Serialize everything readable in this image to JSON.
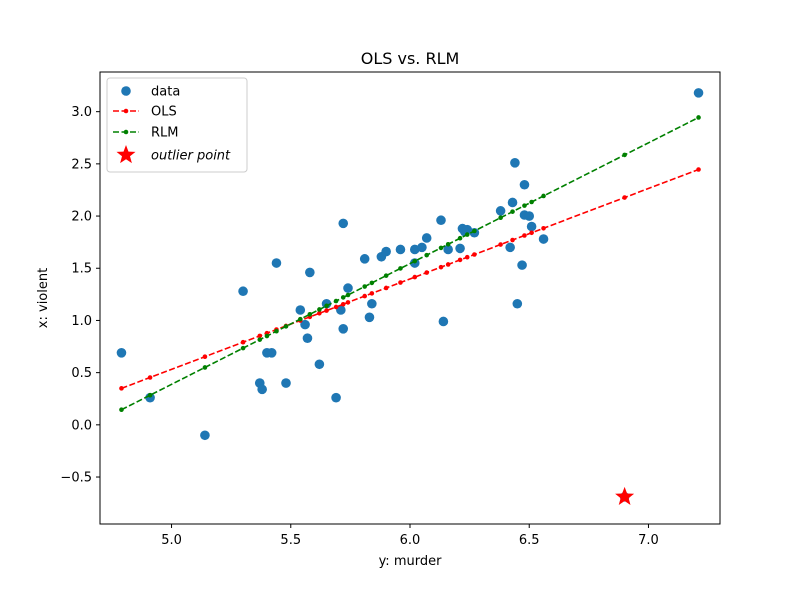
{
  "chart_data": {
    "type": "scatter",
    "title": "OLS vs. RLM",
    "xlabel": "y: murder",
    "ylabel": "x: violent",
    "xlim": [
      4.7,
      7.3
    ],
    "ylim": [
      -0.95,
      3.38
    ],
    "xticks": [
      5.0,
      5.5,
      6.0,
      6.5,
      7.0
    ],
    "xtick_labels": [
      "5.0",
      "5.5",
      "6.0",
      "6.5",
      "7.0"
    ],
    "yticks": [
      -0.5,
      0.0,
      0.5,
      1.0,
      1.5,
      2.0,
      2.5,
      3.0
    ],
    "ytick_labels": [
      "−0.5",
      "0.0",
      "0.5",
      "1.0",
      "1.5",
      "2.0",
      "2.5",
      "3.0"
    ],
    "grid": false,
    "legend_position": "top-left",
    "series": [
      {
        "name": "data",
        "kind": "scatter",
        "color": "#1f77b4",
        "points": [
          [
            4.79,
            0.69
          ],
          [
            4.91,
            0.26
          ],
          [
            5.14,
            -0.1
          ],
          [
            5.3,
            1.28
          ],
          [
            5.37,
            0.4
          ],
          [
            5.38,
            0.34
          ],
          [
            5.4,
            0.69
          ],
          [
            5.42,
            0.69
          ],
          [
            5.44,
            1.55
          ],
          [
            5.48,
            0.4
          ],
          [
            5.54,
            1.1
          ],
          [
            5.56,
            0.96
          ],
          [
            5.57,
            0.83
          ],
          [
            5.58,
            1.46
          ],
          [
            5.62,
            0.58
          ],
          [
            5.65,
            1.16
          ],
          [
            5.69,
            0.26
          ],
          [
            5.71,
            1.1
          ],
          [
            5.72,
            0.92
          ],
          [
            5.72,
            1.93
          ],
          [
            5.74,
            1.31
          ],
          [
            5.81,
            1.59
          ],
          [
            5.83,
            1.03
          ],
          [
            5.84,
            1.16
          ],
          [
            5.88,
            1.61
          ],
          [
            5.9,
            1.66
          ],
          [
            5.96,
            1.68
          ],
          [
            6.02,
            1.55
          ],
          [
            6.02,
            1.68
          ],
          [
            6.05,
            1.7
          ],
          [
            6.07,
            1.79
          ],
          [
            6.13,
            1.96
          ],
          [
            6.14,
            0.99
          ],
          [
            6.16,
            1.68
          ],
          [
            6.21,
            1.69
          ],
          [
            6.22,
            1.88
          ],
          [
            6.23,
            1.85
          ],
          [
            6.24,
            1.87
          ],
          [
            6.27,
            1.84
          ],
          [
            6.38,
            2.05
          ],
          [
            6.42,
            1.7
          ],
          [
            6.43,
            2.13
          ],
          [
            6.44,
            2.51
          ],
          [
            6.45,
            1.16
          ],
          [
            6.47,
            1.53
          ],
          [
            6.48,
            2.3
          ],
          [
            6.48,
            2.01
          ],
          [
            6.5,
            2.0
          ],
          [
            6.51,
            1.9
          ],
          [
            6.56,
            1.78
          ],
          [
            6.9,
            -0.69
          ],
          [
            7.21,
            3.18
          ]
        ]
      },
      {
        "name": "OLS",
        "kind": "line",
        "color": "#ff0000",
        "dashed": true,
        "x": [
          4.79,
          4.91,
          5.14,
          5.3,
          5.37,
          5.4,
          5.44,
          5.48,
          5.54,
          5.58,
          5.62,
          5.65,
          5.69,
          5.72,
          5.74,
          5.81,
          5.84,
          5.9,
          5.96,
          6.02,
          6.07,
          6.13,
          6.16,
          6.21,
          6.24,
          6.27,
          6.38,
          6.43,
          6.48,
          6.51,
          6.56,
          6.9,
          7.21
        ],
        "intercept": -3.8,
        "slope": 0.8663
      },
      {
        "name": "RLM",
        "kind": "line",
        "color": "#008000",
        "dashed": true,
        "x": [
          4.79,
          4.91,
          5.14,
          5.3,
          5.37,
          5.4,
          5.44,
          5.48,
          5.54,
          5.58,
          5.62,
          5.65,
          5.69,
          5.72,
          5.74,
          5.81,
          5.84,
          5.9,
          5.96,
          6.02,
          6.07,
          6.13,
          6.16,
          6.21,
          6.24,
          6.27,
          6.38,
          6.43,
          6.48,
          6.51,
          6.56,
          6.9,
          7.21
        ],
        "intercept": -5.3962,
        "slope": 1.1568
      },
      {
        "name": "outlier point",
        "kind": "star",
        "color": "#ff0000",
        "points": [
          [
            6.9,
            -0.69
          ]
        ]
      }
    ],
    "legend": [
      {
        "label": "data",
        "marker": "circle",
        "color": "#1f77b4"
      },
      {
        "label": "OLS",
        "marker": "line-dot",
        "color": "#ff0000"
      },
      {
        "label": "RLM",
        "marker": "line-dot",
        "color": "#008000"
      },
      {
        "label": "outlier point",
        "marker": "star",
        "color": "#ff0000",
        "italic": true
      }
    ]
  }
}
